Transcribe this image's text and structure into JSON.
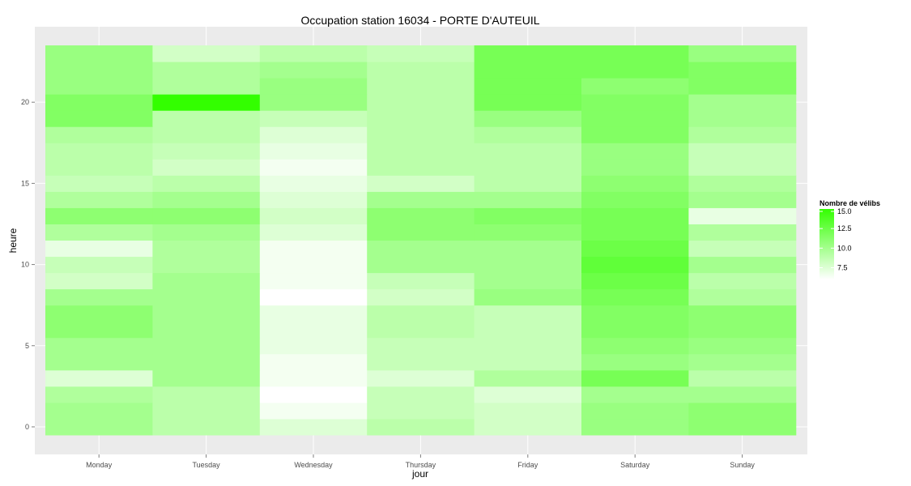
{
  "chart_data": {
    "type": "heatmap",
    "title": "Occupation station 16034 - PORTE D'AUTEUIL",
    "xlabel": "jour",
    "ylabel": "heure",
    "x": [
      "Monday",
      "Tuesday",
      "Wednesday",
      "Thursday",
      "Friday",
      "Saturday",
      "Sunday"
    ],
    "y": [
      0,
      1,
      2,
      3,
      4,
      5,
      6,
      7,
      8,
      9,
      10,
      11,
      12,
      13,
      14,
      15,
      16,
      17,
      18,
      19,
      20,
      21,
      22,
      23
    ],
    "yticks": [
      0,
      5,
      10,
      15,
      20
    ],
    "ylim": [
      -0.5,
      23.5
    ],
    "grid": true,
    "legend": {
      "title": "Nombre de vélibs",
      "position": "right",
      "min": 6,
      "max": 15,
      "ticks": [
        7.5,
        10.0,
        12.5,
        15.0
      ],
      "tick_labels": [
        "7.5",
        "10.0",
        "12.5",
        "15.0"
      ],
      "color_low": "#ffffff",
      "color_high": "#33ff00"
    },
    "values": [
      [
        10.0,
        9.0,
        7.5,
        9.0,
        8.0,
        10.5,
        11.0
      ],
      [
        10.0,
        9.0,
        6.5,
        8.5,
        8.0,
        10.5,
        11.0
      ],
      [
        9.5,
        9.0,
        6.0,
        8.5,
        7.5,
        10.0,
        10.0
      ],
      [
        7.5,
        10.0,
        6.5,
        7.5,
        9.5,
        12.0,
        9.0
      ],
      [
        10.0,
        10.0,
        6.5,
        8.5,
        8.5,
        10.5,
        10.0
      ],
      [
        10.0,
        10.0,
        7.0,
        8.5,
        8.5,
        11.0,
        10.5
      ],
      [
        11.0,
        10.0,
        7.0,
        9.0,
        8.5,
        11.5,
        11.0
      ],
      [
        11.0,
        10.0,
        7.0,
        9.0,
        8.5,
        11.5,
        11.0
      ],
      [
        10.0,
        10.0,
        6.0,
        8.0,
        10.5,
        12.0,
        9.5
      ],
      [
        8.0,
        10.0,
        6.5,
        8.5,
        10.0,
        12.5,
        9.0
      ],
      [
        8.5,
        9.5,
        6.5,
        10.0,
        10.0,
        13.0,
        10.0
      ],
      [
        7.0,
        9.5,
        6.5,
        10.0,
        10.0,
        12.5,
        8.5
      ],
      [
        9.5,
        10.0,
        7.5,
        11.0,
        11.0,
        12.0,
        9.5
      ],
      [
        11.0,
        11.0,
        8.0,
        11.0,
        11.5,
        12.0,
        7.0
      ],
      [
        9.5,
        10.0,
        7.5,
        10.0,
        10.0,
        11.5,
        10.0
      ],
      [
        8.5,
        9.0,
        7.0,
        8.0,
        9.0,
        11.0,
        9.5
      ],
      [
        9.0,
        8.0,
        6.5,
        9.0,
        9.0,
        10.5,
        8.5
      ],
      [
        9.0,
        8.5,
        7.0,
        9.0,
        9.0,
        10.5,
        8.5
      ],
      [
        9.5,
        9.0,
        7.5,
        9.0,
        9.5,
        11.5,
        9.5
      ],
      [
        11.5,
        9.0,
        8.5,
        9.0,
        10.5,
        11.5,
        10.0
      ],
      [
        11.5,
        15.0,
        10.5,
        9.0,
        12.0,
        11.5,
        10.0
      ],
      [
        10.5,
        9.5,
        10.5,
        9.0,
        12.0,
        11.0,
        11.5
      ],
      [
        10.5,
        9.5,
        10.0,
        9.0,
        12.0,
        12.0,
        11.5
      ],
      [
        10.5,
        8.0,
        9.0,
        8.5,
        12.0,
        12.0,
        10.5
      ]
    ]
  }
}
